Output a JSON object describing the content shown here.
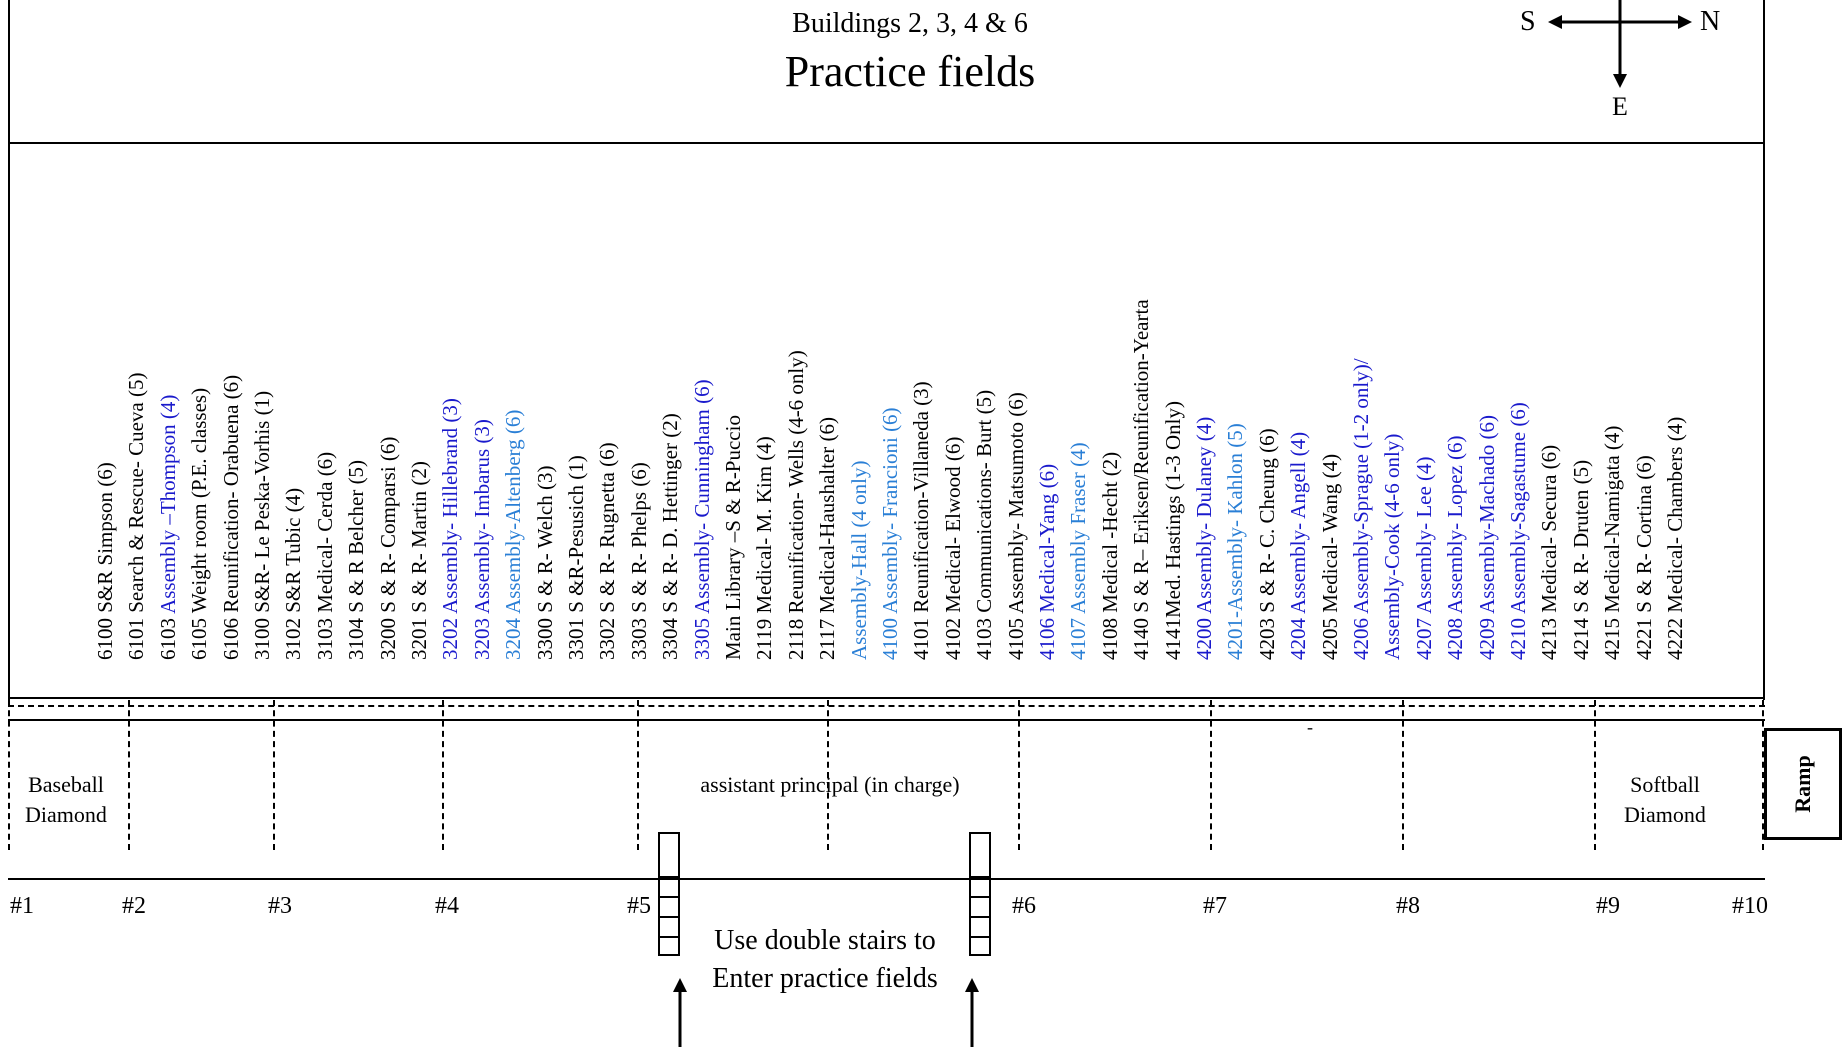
{
  "header": {
    "subtitle": "Buildings 2, 3, 4 & 6",
    "title": "Practice fields"
  },
  "compass": {
    "south": "S",
    "north": "N",
    "east": "E"
  },
  "colors": {
    "black": "#000000",
    "dark_blue": "#1a1acc",
    "light_blue": "#2a7fd6"
  },
  "rooms": [
    {
      "prefix": "6100 ",
      "text": "S&R Simpson (6)",
      "color": "black"
    },
    {
      "prefix": "6101 ",
      "text": "Search & Rescue- Cueva (5)",
      "color": "black"
    },
    {
      "prefix": "6103 ",
      "text": "Assembly –Thompson (4)",
      "color": "dark_blue"
    },
    {
      "prefix": "6105 ",
      "text": "Weight room (P.E. classes)",
      "color": "black"
    },
    {
      "prefix": "6106 ",
      "text": "Reunification- Orabuena (6)",
      "color": "black"
    },
    {
      "prefix": "3100 ",
      "text": "S&R- Le Peska-Vorhis (1)",
      "color": "black"
    },
    {
      "prefix": "3102 ",
      "text": "S&R Tubic (4)",
      "color": "black"
    },
    {
      "prefix": "3103 ",
      "text": "Medical- Cerda (6)",
      "color": "black"
    },
    {
      "prefix": "3104 ",
      "text": "S & R Belcher (5)",
      "color": "black"
    },
    {
      "prefix": "3200 ",
      "text": "S & R- Comparsi (6)",
      "color": "black"
    },
    {
      "prefix": "3201 ",
      "text": "S & R- Martin (2)",
      "color": "black"
    },
    {
      "prefix": "",
      "text": "3202 Assembly- Hillebrand (3)",
      "color": "dark_blue"
    },
    {
      "prefix": "",
      "text": "3203 Assembly- Imbarus (3)",
      "color": "dark_blue"
    },
    {
      "prefix": "",
      "text": "3204 Assembly-Altenberg (6)",
      "color": "light_blue"
    },
    {
      "prefix": "3300 ",
      "text": "S & R- Welch (3)",
      "color": "black"
    },
    {
      "prefix": "3301 ",
      "text": "S &R-Pesusich (1)",
      "color": "black"
    },
    {
      "prefix": "3302 ",
      "text": "S & R- Rugnetta (6)",
      "color": "black"
    },
    {
      "prefix": "3303 ",
      "text": "S & R- Phelps (6)",
      "color": "black"
    },
    {
      "prefix": "3304 ",
      "text": "S & R- D. Hettinger (2)",
      "color": "black"
    },
    {
      "prefix": "",
      "text": "3305 Assembly- Cunningham (6)",
      "color": "dark_blue"
    },
    {
      "prefix": "",
      "text": "Main Library –S & R-Puccio",
      "color": "black"
    },
    {
      "prefix": "2119 ",
      "text": "Medical- M. Kim (4)",
      "color": "black"
    },
    {
      "prefix": "2118 ",
      "text": "Reunification- Wells (4-6 only)",
      "color": "black"
    },
    {
      "prefix": "2117 ",
      "text": "Medical-Haushalter (6)",
      "color": "black"
    },
    {
      "prefix": "",
      "text": "Assembly-Hall (4 only)",
      "color": "light_blue"
    },
    {
      "prefix": "",
      "text": "4100 Assembly- Francioni (6)",
      "color": "light_blue"
    },
    {
      "prefix": "4101 ",
      "text": "Reunification-Villaneda (3)",
      "color": "black"
    },
    {
      "prefix": "4102 ",
      "text": "Medical- Elwood (6)",
      "color": "black"
    },
    {
      "prefix": "4103 ",
      "text": "Communications- Burt (5)",
      "color": "black"
    },
    {
      "prefix": "4105 ",
      "text": "Assembly- Matsumoto (6)",
      "color": "black"
    },
    {
      "prefix": "",
      "text": "4106 Medical-Yang (6)",
      "color": "dark_blue"
    },
    {
      "prefix": "",
      "text": "4107 Assembly Fraser (4)",
      "color": "light_blue"
    },
    {
      "prefix": "4108 ",
      "text": "Medical -Hecht (2)",
      "color": "black"
    },
    {
      "prefix": "4140 ",
      "text": "S & R– Eriksen/Reunification-Yearta",
      "color": "black"
    },
    {
      "prefix": "4141",
      "text": "Med. Hastings (1-3 Only)",
      "color": "black"
    },
    {
      "prefix": "",
      "text": "4200 Assembly- Dulaney (4)",
      "color": "dark_blue"
    },
    {
      "prefix": "",
      "text": "4201-Assembly- Kahlon (5)",
      "color": "light_blue"
    },
    {
      "prefix": "4203 ",
      "text": "S & R- C. Cheung (6)",
      "color": "black"
    },
    {
      "prefix": "",
      "text": "4204 Assembly- Angell (4)",
      "color": "dark_blue"
    },
    {
      "prefix": "4205 ",
      "text": "Medical- Wang (4)",
      "color": "black"
    },
    {
      "prefix": "",
      "text": "4206 Assembly-Sprague (1-2 only)/",
      "color": "dark_blue"
    },
    {
      "prefix": "",
      "text": "Assembly-Cook (4-6 only)",
      "color": "dark_blue"
    },
    {
      "prefix": "",
      "text": "4207 Assembly- Lee (4)",
      "color": "dark_blue"
    },
    {
      "prefix": "",
      "text": "4208 Assembly- Lopez (6)",
      "color": "dark_blue"
    },
    {
      "prefix": "",
      "text": "4209 Assembly-Machado (6)",
      "color": "dark_blue"
    },
    {
      "prefix": "",
      "text": "4210 Assembly-Sagastume (6)",
      "color": "dark_blue"
    },
    {
      "prefix": "4213 ",
      "text": "Medical- Secura (6)",
      "color": "black"
    },
    {
      "prefix": "4214 ",
      "text": "S & R- Druten (5)",
      "color": "black"
    },
    {
      "prefix": "4215 ",
      "text": "Medical-Namigata (4)",
      "color": "black"
    },
    {
      "prefix": "4221 ",
      "text": "S & R- Cortina (6)",
      "color": "black"
    },
    {
      "prefix": "4222 ",
      "text": "Medical- Chambers (4)",
      "color": "black"
    }
  ],
  "areas": {
    "baseball": "Baseball Diamond",
    "center": "assistant principal (in charge)",
    "softball": "Softball Diamond",
    "ramp": "Ramp",
    "dash_mark": "-"
  },
  "posts": [
    "#1",
    "#2",
    "#3",
    "#4",
    "#5",
    "#6",
    "#7",
    "#8",
    "#9",
    "#10"
  ],
  "stairs_note": "Use double stairs to Enter practice fields"
}
